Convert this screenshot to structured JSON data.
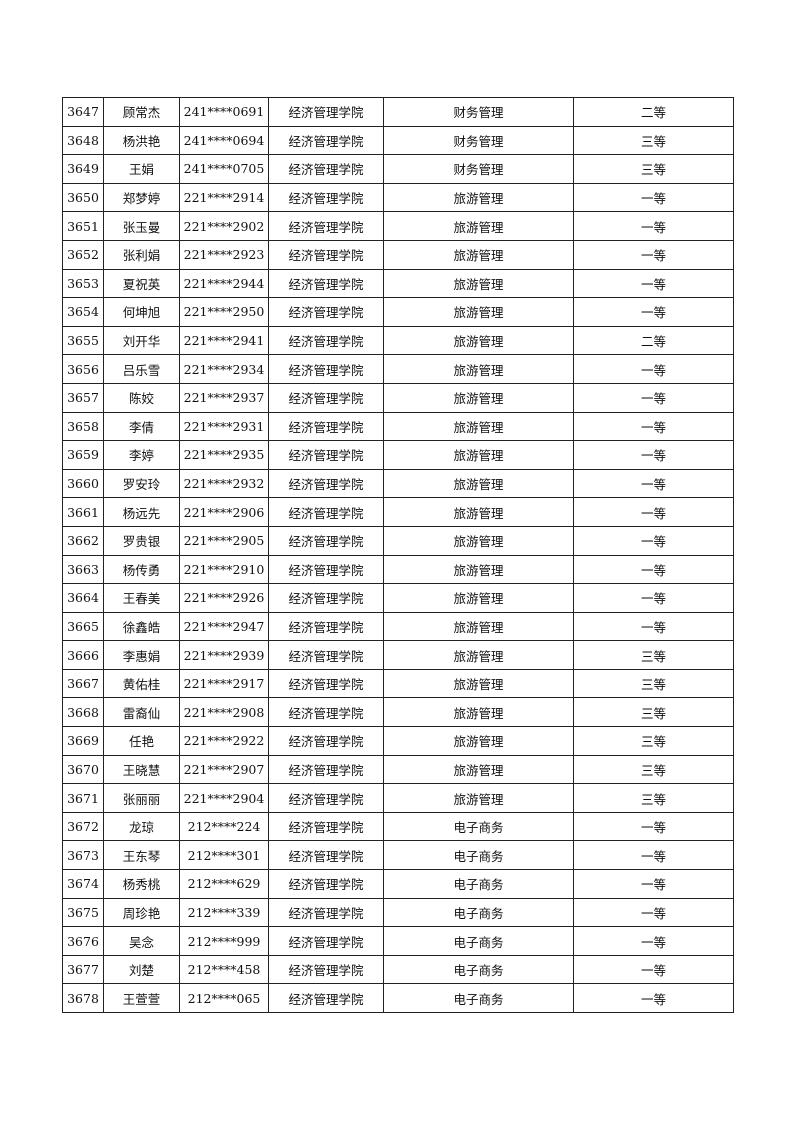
{
  "rows": [
    [
      "3647",
      "顾常杰",
      "241****0691",
      "经济管理学院",
      "财务管理",
      "二等"
    ],
    [
      "3648",
      "杨洪艳",
      "241****0694",
      "经济管理学院",
      "财务管理",
      "三等"
    ],
    [
      "3649",
      "王娟",
      "241****0705",
      "经济管理学院",
      "财务管理",
      "三等"
    ],
    [
      "3650",
      "郑梦婷",
      "221****2914",
      "经济管理学院",
      "旅游管理",
      "一等"
    ],
    [
      "3651",
      "张玉曼",
      "221****2902",
      "经济管理学院",
      "旅游管理",
      "一等"
    ],
    [
      "3652",
      "张利娟",
      "221****2923",
      "经济管理学院",
      "旅游管理",
      "一等"
    ],
    [
      "3653",
      "夏祝英",
      "221****2944",
      "经济管理学院",
      "旅游管理",
      "一等"
    ],
    [
      "3654",
      "何坤旭",
      "221****2950",
      "经济管理学院",
      "旅游管理",
      "一等"
    ],
    [
      "3655",
      "刘开华",
      "221****2941",
      "经济管理学院",
      "旅游管理",
      "二等"
    ],
    [
      "3656",
      "吕乐雪",
      "221****2934",
      "经济管理学院",
      "旅游管理",
      "一等"
    ],
    [
      "3657",
      "陈姣",
      "221****2937",
      "经济管理学院",
      "旅游管理",
      "一等"
    ],
    [
      "3658",
      "李倩",
      "221****2931",
      "经济管理学院",
      "旅游管理",
      "一等"
    ],
    [
      "3659",
      "李婷",
      "221****2935",
      "经济管理学院",
      "旅游管理",
      "一等"
    ],
    [
      "3660",
      "罗安玲",
      "221****2932",
      "经济管理学院",
      "旅游管理",
      "一等"
    ],
    [
      "3661",
      "杨远先",
      "221****2906",
      "经济管理学院",
      "旅游管理",
      "一等"
    ],
    [
      "3662",
      "罗贵银",
      "221****2905",
      "经济管理学院",
      "旅游管理",
      "一等"
    ],
    [
      "3663",
      "杨传勇",
      "221****2910",
      "经济管理学院",
      "旅游管理",
      "一等"
    ],
    [
      "3664",
      "王春美",
      "221****2926",
      "经济管理学院",
      "旅游管理",
      "一等"
    ],
    [
      "3665",
      "徐鑫皓",
      "221****2947",
      "经济管理学院",
      "旅游管理",
      "一等"
    ],
    [
      "3666",
      "李惠娟",
      "221****2939",
      "经济管理学院",
      "旅游管理",
      "三等"
    ],
    [
      "3667",
      "黄佑桂",
      "221****2917",
      "经济管理学院",
      "旅游管理",
      "三等"
    ],
    [
      "3668",
      "雷裔仙",
      "221****2908",
      "经济管理学院",
      "旅游管理",
      "三等"
    ],
    [
      "3669",
      "任艳",
      "221****2922",
      "经济管理学院",
      "旅游管理",
      "三等"
    ],
    [
      "3670",
      "王晓慧",
      "221****2907",
      "经济管理学院",
      "旅游管理",
      "三等"
    ],
    [
      "3671",
      "张丽丽",
      "221****2904",
      "经济管理学院",
      "旅游管理",
      "三等"
    ],
    [
      "3672",
      "龙琼",
      "212****224",
      "经济管理学院",
      "电子商务",
      "一等"
    ],
    [
      "3673",
      "王东琴",
      "212****301",
      "经济管理学院",
      "电子商务",
      "一等"
    ],
    [
      "3674",
      "杨秀桃",
      "212****629",
      "经济管理学院",
      "电子商务",
      "一等"
    ],
    [
      "3675",
      "周珍艳",
      "212****339",
      "经济管理学院",
      "电子商务",
      "一等"
    ],
    [
      "3676",
      "吴念",
      "212****999",
      "经济管理学院",
      "电子商务",
      "一等"
    ],
    [
      "3677",
      "刘楚",
      "212****458",
      "经济管理学院",
      "电子商务",
      "一等"
    ],
    [
      "3678",
      "王萱萱",
      "212****065",
      "经济管理学院",
      "电子商务",
      "一等"
    ]
  ]
}
